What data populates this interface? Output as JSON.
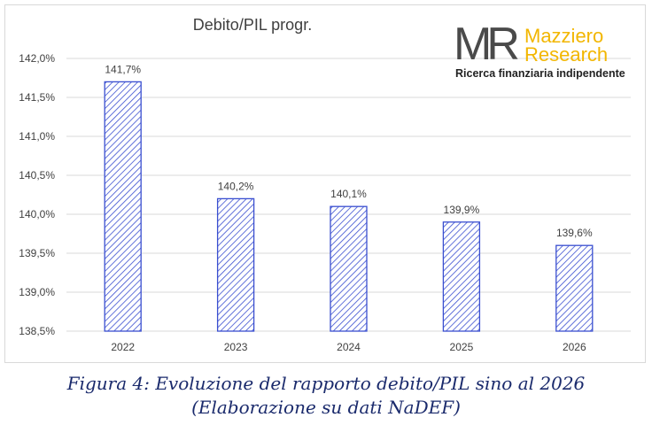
{
  "chart_data": {
    "type": "bar",
    "title": "Debito/PIL progr.",
    "categories": [
      "2022",
      "2023",
      "2024",
      "2025",
      "2026"
    ],
    "values": [
      141.7,
      140.2,
      140.1,
      139.9,
      139.6
    ],
    "data_labels": [
      "141,7%",
      "140,2%",
      "140,1%",
      "139,9%",
      "139,6%"
    ],
    "ylim": [
      138.5,
      142.0
    ],
    "yticks": [
      138.5,
      139.0,
      139.5,
      140.0,
      140.5,
      141.0,
      141.5,
      142.0
    ],
    "ytick_labels": [
      "138,5%",
      "139,0%",
      "139,5%",
      "140,0%",
      "140,5%",
      "141,0%",
      "141,5%",
      "142,0%"
    ],
    "xlabel": "",
    "ylabel": "",
    "grid": true,
    "bar_style": "diagonal hatch",
    "colors": {
      "bar": "#3a4fd0",
      "grid": "#d9d9d9",
      "text": "#404040"
    }
  },
  "logo": {
    "mark": "MR",
    "name_line1": "Mazziero",
    "name_line2": "Research",
    "tagline": "Ricerca finanziaria indipendente",
    "colors": {
      "mark": "#4a4a4a",
      "name": "#f2b600"
    }
  },
  "caption": {
    "line1": "Figura 4: Evoluzione del rapporto debito/PIL sino al 2026",
    "line2": "(Elaborazione su dati NaDEF)",
    "color": "#1a2a6c"
  }
}
